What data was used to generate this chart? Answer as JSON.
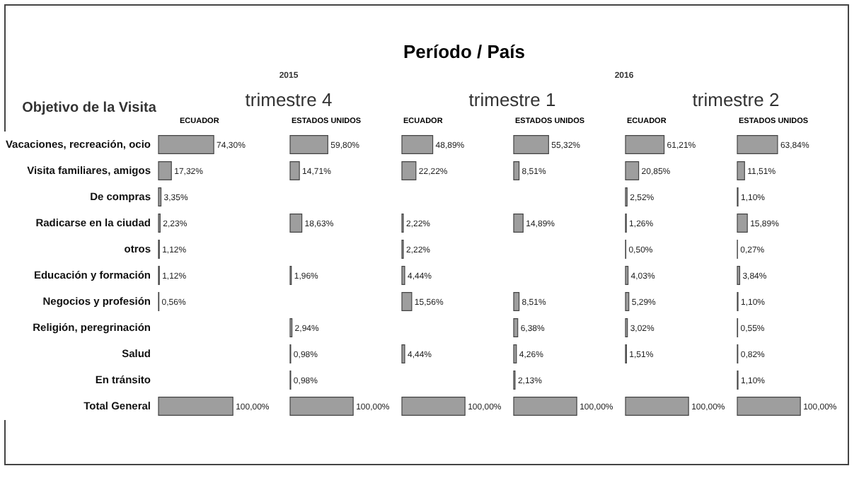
{
  "chart_data": [
    {
      "type": "bar",
      "orientation": "horizontal",
      "ylabel": "Objetivo de la Visita",
      "annotations": [
        "2015",
        "trimestre 4"
      ],
      "subtitle": "ECUADOR",
      "tick_labels": "y",
      "color": "#9e9e9e",
      "categories": [
        "Vacaciones, recreación, ocio",
        "Visita familiares, amigos",
        "De compras",
        "Radicarse en la ciudad",
        "otros",
        "Educación y formación",
        "Negocios y profesión",
        "Religión, peregrinación",
        "Salud",
        "En tránsito",
        "Total General"
      ],
      "values": [
        74.3,
        17.32,
        3.35,
        2.23,
        1.12,
        1.12,
        0.56,
        null,
        null,
        null,
        100
      ],
      "value_labels": [
        "74,30%",
        "17,32%",
        "3,35%",
        "2,23%",
        "1,12%",
        "1,12%",
        "0,56%",
        null,
        null,
        null,
        "100,00%"
      ]
    },
    {
      "type": "bar",
      "orientation": "horizontal",
      "subtitle": "ESTADOS UNIDOS",
      "tick_labels": false,
      "color": "#9e9e9e",
      "categories": [
        null,
        null,
        null,
        null,
        null,
        null,
        null,
        null,
        null,
        null,
        null
      ],
      "values": [
        59.8,
        14.71,
        null,
        18.63,
        null,
        1.96,
        null,
        2.94,
        0.98,
        0.98,
        100
      ],
      "value_labels": [
        "59,80%",
        "14,71%",
        null,
        "18,63%",
        null,
        "1,96%",
        null,
        "2,94%",
        "0,98%",
        "0,98%",
        "100,00%"
      ]
    },
    {
      "type": "bar",
      "orientation": "horizontal",
      "title": "Período / País",
      "annotations": [
        "2016",
        "trimestre 1"
      ],
      "subtitle": "ECUADOR",
      "tick_labels": false,
      "color": "#9e9e9e",
      "categories": [
        null,
        null,
        null,
        null,
        null,
        null,
        null,
        null,
        null,
        null,
        null
      ],
      "values": [
        48.89,
        22.22,
        null,
        2.22,
        2.22,
        4.44,
        15.56,
        null,
        4.44,
        null,
        100
      ],
      "value_labels": [
        "48,89%",
        "22,22%",
        null,
        "2,22%",
        "2,22%",
        "4,44%",
        "15,56%",
        null,
        "4,44%",
        null,
        "100,00%"
      ]
    },
    {
      "type": "bar",
      "orientation": "horizontal",
      "subtitle": "ESTADOS UNIDOS",
      "tick_labels": false,
      "color": "#9e9e9e",
      "categories": [
        null,
        null,
        null,
        null,
        null,
        null,
        null,
        null,
        null,
        null,
        null
      ],
      "values": [
        55.32,
        8.51,
        null,
        14.89,
        null,
        null,
        8.51,
        6.38,
        4.26,
        2.13,
        100
      ],
      "value_labels": [
        "55,32%",
        "8,51%",
        null,
        "14,89%",
        null,
        null,
        "8,51%",
        "6,38%",
        "4,26%",
        "2,13%",
        "100,00%"
      ]
    },
    {
      "type": "bar",
      "orientation": "horizontal",
      "annotations": [
        "trimestre 2"
      ],
      "subtitle": "ECUADOR",
      "tick_labels": false,
      "color": "#9e9e9e",
      "categories": [
        null,
        null,
        null,
        null,
        null,
        null,
        null,
        null,
        null,
        null,
        null
      ],
      "values": [
        61.21,
        20.85,
        2.52,
        1.26,
        0.5,
        4.03,
        5.29,
        3.02,
        1.51,
        null,
        100
      ],
      "value_labels": [
        "61,21%",
        "20,85%",
        "2,52%",
        "1,26%",
        "0,50%",
        "4,03%",
        "5,29%",
        "3,02%",
        "1,51%",
        null,
        "100,00%"
      ]
    },
    {
      "type": "bar",
      "orientation": "horizontal",
      "subtitle": "ESTADOS UNIDOS",
      "tick_labels": false,
      "color": "#9e9e9e",
      "categories": [
        null,
        null,
        null,
        null,
        null,
        null,
        null,
        null,
        null,
        null,
        null
      ],
      "values": [
        63.84,
        11.51,
        1.1,
        15.89,
        0.27,
        3.84,
        1.1,
        0.55,
        0.82,
        1.1,
        100
      ],
      "value_labels": [
        "63,84%",
        "11,51%",
        "1,10%",
        "15,89%",
        "0,27%",
        "3,84%",
        "1,10%",
        "0,55%",
        "0,82%",
        "1,10%",
        "100,00%"
      ]
    }
  ]
}
